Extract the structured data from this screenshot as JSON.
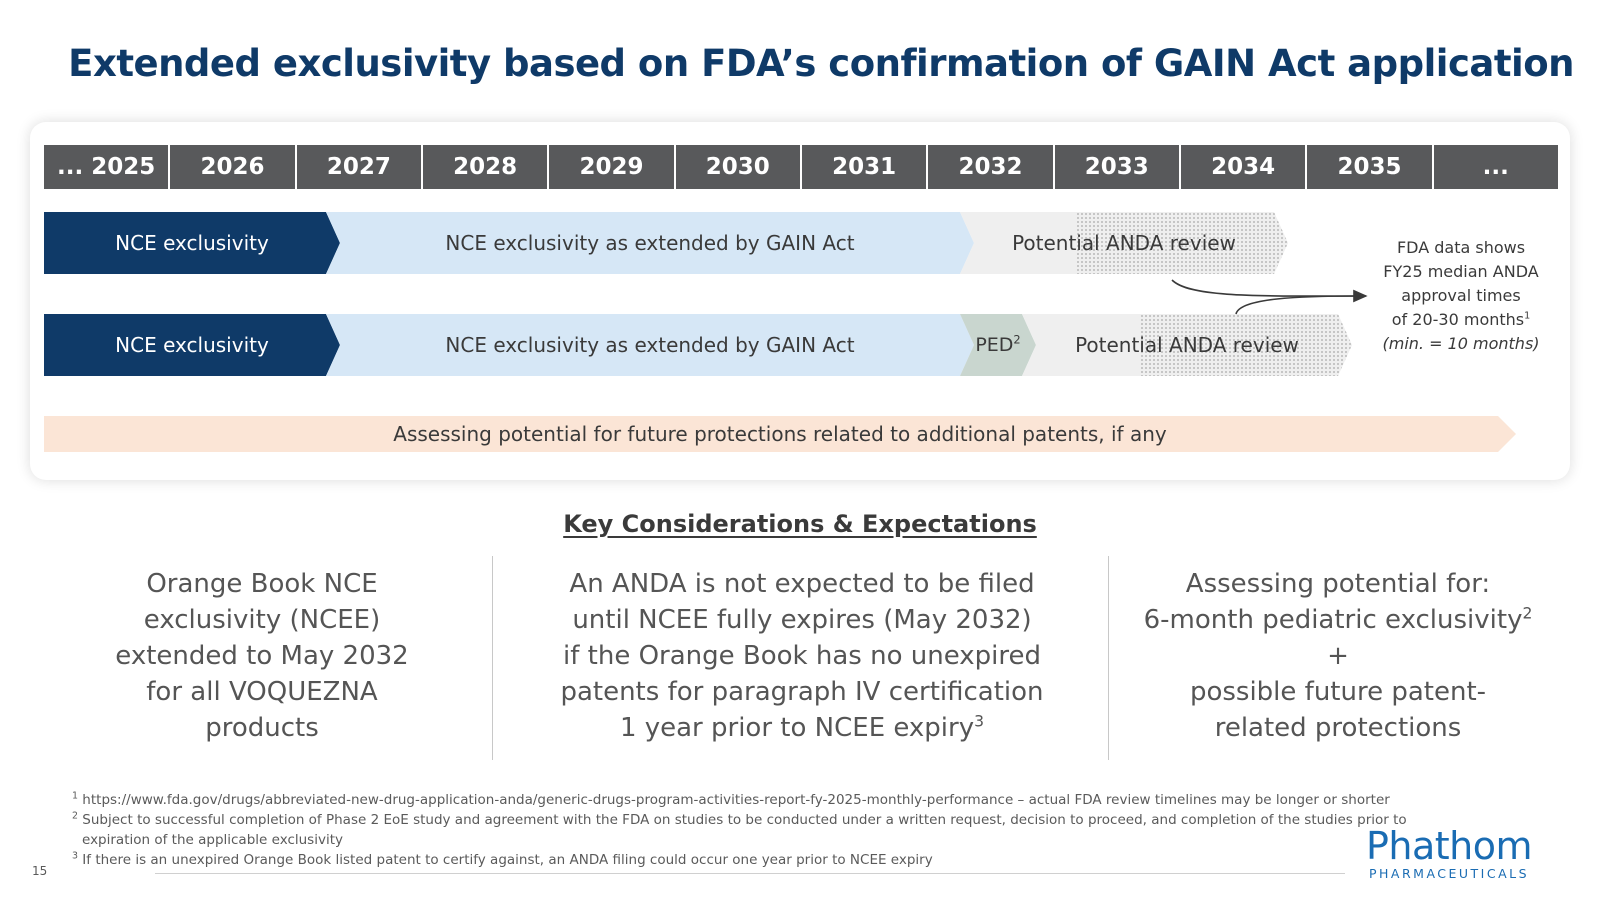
{
  "title": "Extended exclusivity based on FDA’s confirmation of GAIN Act application",
  "timeline": {
    "years": [
      "... 2025",
      "2026",
      "2027",
      "2028",
      "2029",
      "2030",
      "2031",
      "2032",
      "2033",
      "2034",
      "2035",
      "..."
    ],
    "row1": {
      "nce": "NCE exclusivity",
      "gain": "NCE exclusivity as extended by GAIN Act",
      "anda": "Potential ANDA review"
    },
    "row2": {
      "nce": "NCE exclusivity",
      "gain": "NCE exclusivity as extended by GAIN Act",
      "ped": "PED",
      "ped_sup": "2",
      "anda": "Potential ANDA review"
    },
    "assess": "Assessing potential for future protections related to additional patents, if any",
    "note": {
      "line1": "FDA data shows",
      "line2": "FY25 median ANDA",
      "line3": "approval times",
      "line4": "of 20-30 months",
      "line4_sup": "1",
      "line5": "(min. = 10 months)"
    }
  },
  "key": {
    "title": "Key Considerations & Expectations",
    "col1": "Orange Book NCE\nexclusivity (NCEE)\nextended to May 2032\nfor all VOQUEZNA\nproducts",
    "col2_text": "An ANDA is not expected to be filed\nuntil NCEE fully expires (May 2032)\nif the Orange Book has no unexpired\npatents for paragraph IV certification\n1 year prior to NCEE expiry",
    "col2_sup": "3",
    "col3_line1": "Assessing potential for:",
    "col3_line2": "6-month pediatric exclusivity",
    "col3_sup": "2",
    "col3_line3": "+",
    "col3_line4": "possible future patent-",
    "col3_line5": "related protections"
  },
  "footnotes": {
    "f1_num": "1",
    "f1": " https://www.fda.gov/drugs/abbreviated-new-drug-application-anda/generic-drugs-program-activities-report-fy-2025-monthly-performance – actual FDA review timelines may be longer or shorter",
    "f2_num": "2",
    "f2a": " Subject to successful completion of Phase 2 EoE study and agreement with the FDA on studies to be conducted under a written request, decision to proceed, and completion of the studies prior to",
    "f2b": "expiration of the applicable exclusivity",
    "f3_num": "3",
    "f3": " If there is an unexpired Orange Book listed patent to certify against, an ANDA filing could occur one year prior to NCEE expiry"
  },
  "page_number": "15",
  "logo": {
    "brand": "Phathom",
    "sub": "PHARMACEUTICALS"
  },
  "colors": {
    "navy": "#0f3a68",
    "light_blue": "#d6e7f6",
    "gray_header": "#58595b",
    "peach": "#fbe5d6",
    "brand_blue": "#1a6cb3"
  }
}
